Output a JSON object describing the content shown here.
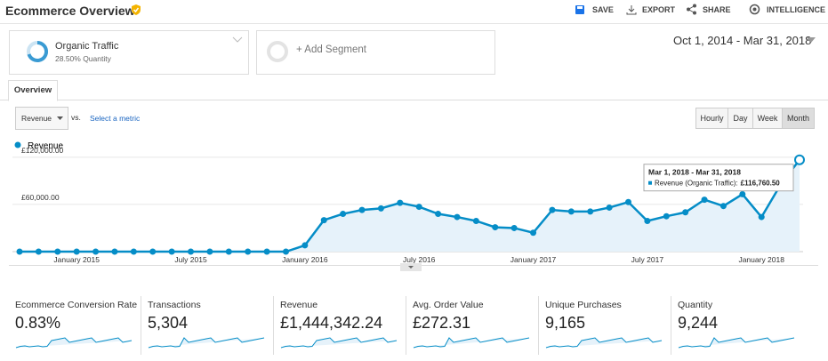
{
  "header": {
    "title": "Ecommerce Overview",
    "actions": [
      "SAVE",
      "EXPORT",
      "SHARE",
      "INTELLIGENCE"
    ]
  },
  "segments": [
    {
      "name": "Organic Traffic",
      "detail": "28.50% Quantity"
    },
    {
      "name": "+ Add Segment"
    }
  ],
  "date_range": "Oct 1, 2014 - Mar 31, 2018",
  "tab": "Overview",
  "controls": {
    "metric": "Revenue",
    "vs": "vs.",
    "select_metric": "Select a metric",
    "granularity": [
      "Hourly",
      "Day",
      "Week",
      "Month"
    ]
  },
  "chart_data": {
    "type": "line",
    "categories": [
      null,
      null,
      null,
      "January 2015",
      null,
      null,
      null,
      null,
      null,
      "July 2015",
      null,
      null,
      null,
      null,
      null,
      "January 2016",
      null,
      null,
      null,
      null,
      null,
      "July 2016",
      null,
      null,
      null,
      null,
      null,
      "January 2017",
      null,
      null,
      null,
      null,
      null,
      "July 2017",
      null,
      null,
      null,
      null,
      null,
      "January 2018",
      null,
      null
    ],
    "series": [
      {
        "name": "Revenue",
        "color": "#058dc7",
        "values": [
          0,
          0,
          0,
          0,
          0,
          0,
          0,
          0,
          0,
          0,
          0,
          0,
          0,
          0,
          0,
          8000,
          40000,
          48000,
          53000,
          55000,
          62000,
          57000,
          48000,
          44000,
          39000,
          31000,
          30000,
          24000,
          53000,
          51000,
          51000,
          56000,
          63000,
          39000,
          45000,
          50000,
          66000,
          58000,
          73000,
          44000,
          85000,
          116760.5
        ],
        "value_labels": [
          null,
          null,
          null,
          null,
          null,
          null,
          null,
          null,
          null,
          null,
          null,
          null,
          null,
          null,
          null,
          null,
          null,
          null,
          null,
          null,
          null,
          null,
          null,
          null,
          null,
          null,
          null,
          null,
          null,
          null,
          null,
          null,
          null,
          null,
          null,
          null,
          null,
          null,
          null,
          null,
          null,
          "£116,760.50"
        ]
      }
    ],
    "ylim": [
      0,
      130000
    ],
    "yticks": [
      {
        "value": 60000,
        "label": "£60,000.00"
      },
      {
        "value": 120000,
        "label": "£120,000.00"
      }
    ],
    "grid": true,
    "tooltip": {
      "title": "Mar 1, 2018 - Mar 31, 2018",
      "label": "Revenue (Organic Traffic):"
    }
  },
  "scorecards": [
    {
      "label": "Ecommerce Conversion Rate",
      "value": "0.83%"
    },
    {
      "label": "Transactions",
      "value": "5,304"
    },
    {
      "label": "Revenue",
      "value": "£1,444,342.24"
    },
    {
      "label": "Avg. Order Value",
      "value": "£272.31"
    },
    {
      "label": "Unique Purchases",
      "value": "9,165"
    },
    {
      "label": "Quantity",
      "value": "9,244"
    }
  ]
}
